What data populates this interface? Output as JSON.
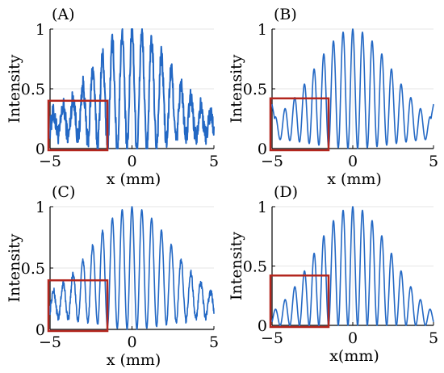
{
  "colors": {
    "signal": "#2368c4",
    "highlight_box": "#b3261e",
    "grid": "#e6e6e6",
    "axes": "#000000"
  },
  "chart_data": [
    {
      "panel": "(A)",
      "type": "line",
      "xlabel": "x (mm)",
      "ylabel": "Intensity",
      "xlim": [
        -5,
        5
      ],
      "ylim": [
        0,
        1
      ],
      "xticks": [
        "-5",
        "0",
        "5"
      ],
      "yticks": [
        "0",
        "0.5",
        "1"
      ],
      "grid": true,
      "fringe_period_mm": 0.6,
      "envelope_sigma_mm": 2.2,
      "noise": "high",
      "edge_level": 0.22,
      "highlight_box": {
        "x": [
          -5,
          -1.5
        ],
        "y": [
          0,
          0.4
        ]
      }
    },
    {
      "panel": "(B)",
      "type": "line",
      "xlabel": "x (mm)",
      "ylabel": "Intensity",
      "xlim": [
        -5,
        5
      ],
      "ylim": [
        0,
        1
      ],
      "xticks": [
        "-5",
        "0",
        "5"
      ],
      "yticks": [
        "0",
        "0.5",
        "1"
      ],
      "grid": true,
      "fringe_period_mm": 0.6,
      "envelope_sigma_mm": 2.4,
      "noise": "none",
      "edge_level": 0.15,
      "edge_spikes": true,
      "highlight_box": {
        "x": [
          -5,
          -1.5
        ],
        "y": [
          0,
          0.42
        ]
      }
    },
    {
      "panel": "(C)",
      "type": "line",
      "xlabel": "x (mm)",
      "ylabel": "Intensity",
      "xlim": [
        -5,
        5
      ],
      "ylim": [
        0,
        1
      ],
      "xticks": [
        "-5",
        "0",
        "5"
      ],
      "yticks": [
        "0",
        "0.5",
        "1"
      ],
      "grid": true,
      "fringe_period_mm": 0.6,
      "envelope_sigma_mm": 2.4,
      "noise": "medium",
      "edge_level": 0.2,
      "highlight_box": {
        "x": [
          -5,
          -1.5
        ],
        "y": [
          0,
          0.4
        ]
      }
    },
    {
      "panel": "(D)",
      "type": "line",
      "xlabel": "x(mm)",
      "ylabel": "Intensity",
      "xlim": [
        -5,
        5
      ],
      "ylim": [
        0,
        1
      ],
      "xticks": [
        "-5",
        "0",
        "5"
      ],
      "yticks": [
        "0",
        "0.5",
        "1"
      ],
      "grid": true,
      "fringe_period_mm": 0.6,
      "envelope_sigma_mm": 2.4,
      "noise": "none",
      "edge_level": 0.0,
      "highlight_box": {
        "x": [
          -5,
          -1.5
        ],
        "y": [
          0,
          0.42
        ]
      }
    }
  ]
}
